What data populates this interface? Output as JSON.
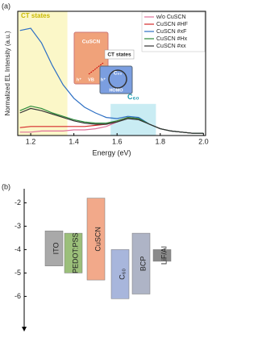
{
  "chart_data": [
    {
      "type": "line",
      "panel_label": "(a)",
      "xlabel": "Energy (eV)",
      "ylabel": "Normalized EL Intensity (a.u.)",
      "xlim": [
        1.14,
        2.01
      ],
      "ylim": [
        0,
        1.1
      ],
      "xticks": [
        1.2,
        1.4,
        1.6,
        1.8,
        {
          "value": 2,
          "label": "2.0"
        }
      ],
      "x": [
        1.15,
        1.2,
        1.25,
        1.3,
        1.35,
        1.4,
        1.45,
        1.5,
        1.55,
        1.6,
        1.65,
        1.7,
        1.75,
        1.8,
        1.85,
        1.9,
        1.95,
        2.0
      ],
      "series": [
        {
          "name": "w/o CuSCN",
          "color": "#e0709a",
          "values": [
            0.03,
            0.03,
            0.04,
            0.04,
            0.04,
            0.05,
            0.05,
            0.06,
            0.08,
            0.12,
            0.16,
            0.15,
            0.1,
            0.06,
            0.04,
            0.03,
            0.02,
            0.02
          ]
        },
        {
          "name": "CuSCN #HF",
          "color": "#d62a2a",
          "values": [
            0.07,
            0.08,
            0.08,
            0.08,
            0.08,
            0.08,
            0.08,
            0.09,
            0.1,
            0.13,
            0.16,
            0.15,
            0.1,
            0.06,
            0.04,
            0.03,
            0.02,
            0.02
          ]
        },
        {
          "name": "CuSCN #xF",
          "color": "#2d6fc4",
          "values": [
            0.93,
            0.95,
            0.82,
            0.62,
            0.45,
            0.33,
            0.25,
            0.2,
            0.16,
            0.15,
            0.17,
            0.16,
            0.1,
            0.06,
            0.04,
            0.03,
            0.02,
            0.02
          ]
        },
        {
          "name": "CuSCN #Hx",
          "color": "#2a8a3a",
          "values": [
            0.22,
            0.26,
            0.24,
            0.2,
            0.17,
            0.14,
            0.12,
            0.11,
            0.11,
            0.13,
            0.16,
            0.15,
            0.1,
            0.06,
            0.04,
            0.03,
            0.02,
            0.02
          ]
        },
        {
          "name": "CuSCN #xx",
          "color": "#333333",
          "values": [
            0.2,
            0.24,
            0.22,
            0.19,
            0.16,
            0.13,
            0.11,
            0.1,
            0.1,
            0.12,
            0.15,
            0.14,
            0.1,
            0.06,
            0.04,
            0.03,
            0.02,
            0.02
          ]
        }
      ],
      "shaded_regions": [
        {
          "label": "CT states",
          "x": [
            1.14,
            1.37
          ],
          "y": [
            0,
            1.1
          ],
          "color": "#fbf7c8"
        },
        {
          "label": "C₆₀",
          "x": [
            1.57,
            1.78
          ],
          "y": [
            0,
            0.28
          ],
          "color": "#c9ecf3"
        }
      ],
      "inset_labels": [
        "CuSCN",
        "CT states",
        "C₆₀",
        "VB",
        "HOMO",
        "h⁺",
        "h⁺"
      ]
    },
    {
      "type": "range_bar",
      "panel_label": "(b)",
      "ylim": [
        -7.4,
        -1.4
      ],
      "yticks": [
        -2,
        -3,
        -4,
        -5,
        -6
      ],
      "bars": [
        {
          "name": "ITO",
          "top": -3.2,
          "bottom": -4.7,
          "color": "#a9a9a9"
        },
        {
          "name": "PEDOT:PSS",
          "top": -3.3,
          "bottom": -5.0,
          "color": "#9bbf7a"
        },
        {
          "name": "CuSCN",
          "top": -1.8,
          "bottom": -5.3,
          "color": "#f2a98a"
        },
        {
          "name": "C₆₀",
          "top": -4.0,
          "bottom": -6.1,
          "color": "#a8b6dc"
        },
        {
          "name": "BCP",
          "top": -3.3,
          "bottom": -5.9,
          "color": "#aeb4c6"
        },
        {
          "name": "LiF/Al",
          "top": -4.0,
          "bottom": -4.5,
          "color": "#8a8a8a"
        }
      ]
    }
  ]
}
